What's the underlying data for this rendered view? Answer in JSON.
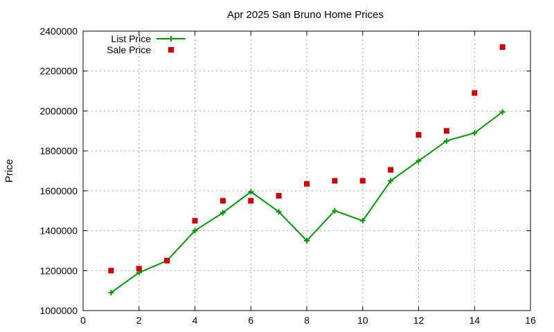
{
  "chart_data": {
    "type": "line",
    "title": "Apr 2025 San Bruno Home Prices",
    "xlabel": "",
    "ylabel": "Price",
    "xlim": [
      0,
      16
    ],
    "ylim": [
      1000000,
      2400000
    ],
    "x_ticks": [
      "0",
      "2",
      "4",
      "6",
      "8",
      "10",
      "12",
      "14",
      "16"
    ],
    "y_ticks": [
      "1000000",
      "1200000",
      "1400000",
      "1600000",
      "1800000",
      "2000000",
      "2200000",
      "2400000"
    ],
    "grid": true,
    "legend_position": "top-left",
    "series": [
      {
        "name": "List Price",
        "style": "line-with-plus-markers",
        "color": "#009900",
        "x": [
          1,
          2,
          3,
          4,
          5,
          6,
          7,
          8,
          9,
          10,
          11,
          12,
          13,
          14,
          15
        ],
        "y": [
          1090000,
          1190000,
          1250000,
          1400000,
          1490000,
          1595000,
          1495000,
          1350000,
          1500000,
          1450000,
          1650000,
          1750000,
          1850000,
          1890000,
          1995000
        ]
      },
      {
        "name": "Sale Price",
        "style": "square-points",
        "color": "#cc0000",
        "x": [
          1,
          2,
          3,
          4,
          5,
          6,
          7,
          8,
          9,
          10,
          11,
          12,
          13,
          14,
          15
        ],
        "y": [
          1200000,
          1210000,
          1250000,
          1450000,
          1550000,
          1550000,
          1575000,
          1635000,
          1650000,
          1650000,
          1705000,
          1880000,
          1900000,
          2090000,
          2320000
        ]
      }
    ]
  }
}
